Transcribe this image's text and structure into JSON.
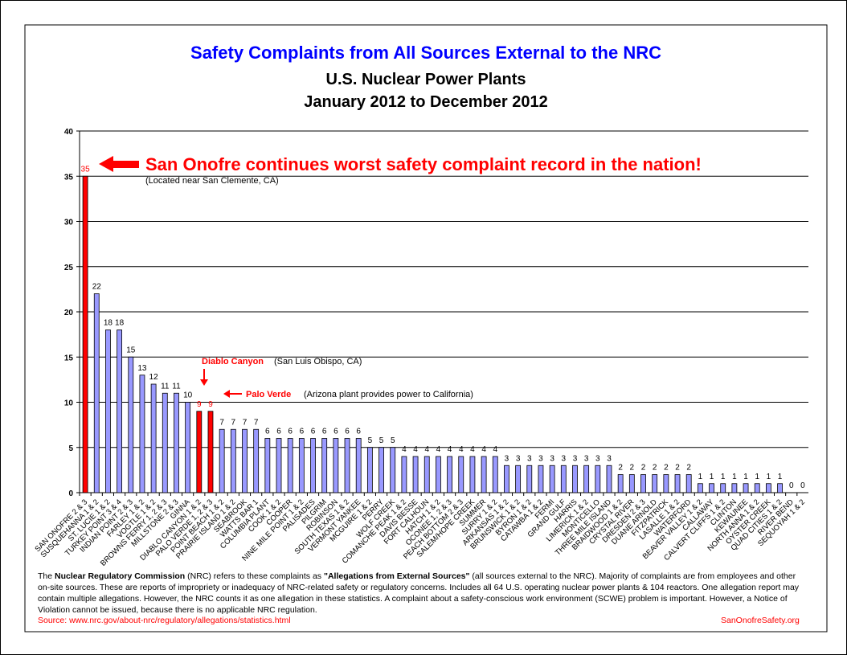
{
  "chart_data": {
    "type": "bar",
    "title": "Safety Complaints from All Sources External to the NRC",
    "subtitle": "U.S. Nuclear Power Plants",
    "subtitle2": "January 2012 to December 2012",
    "xlabel": "",
    "ylabel": "",
    "ylim": [
      0,
      40
    ],
    "yticks": [
      "0",
      "5",
      "10",
      "15",
      "20",
      "25",
      "30",
      "35",
      "40"
    ],
    "grid": true,
    "categories": [
      "SAN ONOFRE 2 & 3",
      "SUSQUEHANNA 1 & 2",
      "ST. LUCIE 1 & 2",
      "TURKEY POINT 3 & 4",
      "INDIAN POINT 2 & 3",
      "FARLEY 1 & 2",
      "VOGTLE 1 & 2",
      "BROWNS FERRY 1, 2 & 3",
      "MILLSTONE 2 & 3",
      "GINNA",
      "DIABLO CANYON 1 & 2",
      "PALO VERDE 1, 2 & 3",
      "POINT BEACH 1 & 2",
      "PRAIRIE ISLAND 1 & 2",
      "SEABROOK",
      "WATTS BAR 1",
      "COLUMBIA PLANT",
      "COOK 1 & 2",
      "COOPER",
      "NINE MILE POINT 1 & 2",
      "PALISADES",
      "PILGRIM",
      "ROBINSON",
      "SOUTH TEXAS 1 & 2",
      "VERMONT YANKEE",
      "MCGUIRE 1 & 2",
      "PERRY",
      "WOLF CREEK",
      "COMANCHE PEAK 1 & 2",
      "DAVIS BESSE",
      "FORT CALHOUN",
      "HATCH 1 & 2",
      "OCONEE 1, 2 & 3",
      "PEACH BOTTOM 2 & 3",
      "SALEM/HOPE CREEK",
      "SUMMER",
      "SURRY 1 & 2",
      "ARKANSAS 1 & 2",
      "BRUNSWICK 1 & 2",
      "BYRON 1 & 2",
      "CATAWBA 1 & 2",
      "FERMI",
      "GRAND GULF",
      "HARRIS",
      "LIMERICK 1 & 2",
      "MONTICELLO",
      "THREE MILE ISLAND",
      "BRAIDWOOD 1 & 2",
      "CRYSTAL RIVER",
      "DRESDEN 2 & 3",
      "DUANE ARNOLD",
      "FITZPATRICK",
      "LASALLE 1 & 2",
      "WATERFORD",
      "BEAVER VALLEY 1 & 2",
      "CALLAWAY",
      "CALVERT CLIFFS 1 & 2",
      "CLINTON",
      "KEWAUNEE",
      "NORTH ANNA 1 & 2",
      "OYSTER CREEK",
      "QUAD CITIES 1 & 2",
      "RIVER BEND",
      "SEQUOYAH 1 & 2"
    ],
    "values": [
      35,
      22,
      18,
      18,
      15,
      13,
      12,
      11,
      11,
      10,
      9,
      9,
      7,
      7,
      7,
      7,
      6,
      6,
      6,
      6,
      6,
      6,
      6,
      6,
      6,
      5,
      5,
      5,
      4,
      4,
      4,
      4,
      4,
      4,
      4,
      4,
      4,
      3,
      3,
      3,
      3,
      3,
      3,
      3,
      3,
      3,
      3,
      2,
      2,
      2,
      2,
      2,
      2,
      2,
      1,
      1,
      1,
      1,
      1,
      1,
      1,
      1,
      0,
      0
    ],
    "highlight": [
      "SAN ONOFRE 2 & 3",
      "DIABLO CANYON 1 & 2",
      "PALO VERDE 1, 2 & 3"
    ],
    "colors": {
      "bar": "#9999FF",
      "highlight": "#FF0000",
      "title": "#0000FF",
      "annotation": "#FF0000"
    },
    "annotations": {
      "main": "San Onofre continues worst safety complaint record in the nation!",
      "main_sub": "(Located near San Clemente, CA)",
      "diablo": "Diablo Canyon",
      "diablo_sub": "(San Luis Obispo, CA)",
      "palo": "Palo Verde",
      "palo_sub": "(Arizona plant provides power to California)"
    }
  },
  "footer": {
    "p1": "The ",
    "p2": "Nuclear Regulatory Commission",
    "p3": " (NRC) refers to these complaints as ",
    "p4": "\"Allegations from External Sources\"",
    "p5": " (all sources external to the NRC). Majority of complaints are from employees and other on-site sources. These are reports of impropriety or inadequacy of NRC-related safety or regulatory concerns. Includes all 64 U.S. operating nuclear power plants & 104 reactors.      One allegation report may contain multiple allegations. However, the NRC counts it as one allegation in these statistics. A complaint about a safety-conscious work environment (SCWE) problem is important. However, a Notice of Violation cannot be issued, because there is no applicable NRC regulation.",
    "source": "Source: www.nrc.gov/about-nrc/regulatory/allegations/statistics.html",
    "site": "SanOnofreSafety.org"
  }
}
